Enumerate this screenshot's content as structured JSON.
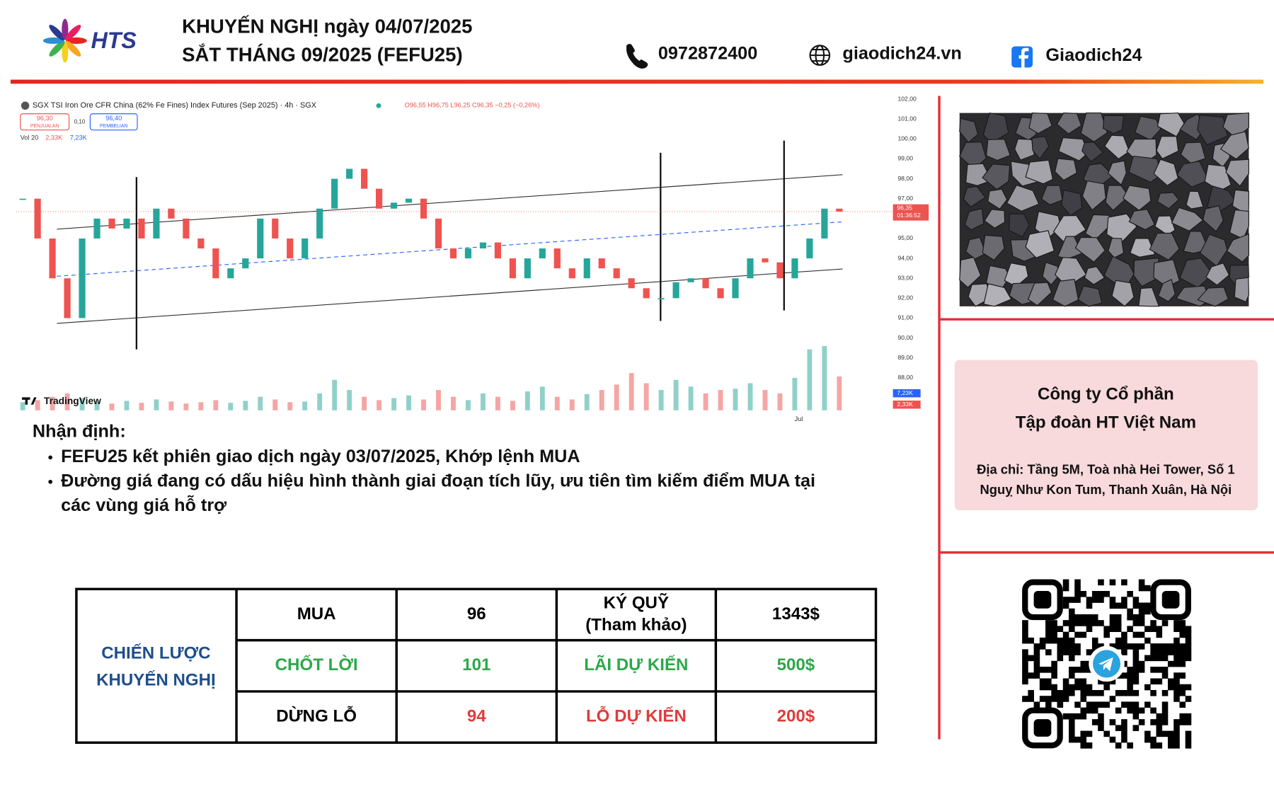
{
  "header": {
    "logo_text": "HTS",
    "title_line1": "KHUYẾN NGHỊ ngày 04/07/2025",
    "title_line2": "SẮT THÁNG 09/2025 (FEFU25)",
    "phone": "0972872400",
    "website": "giaodich24.vn",
    "facebook": "Giaodich24"
  },
  "chart_data": {
    "type": "candlestick",
    "title": "SGX TSI Iron Ore CFR China (62% Fe Fines) Index Futures (Sep 2025) · 4h · SGX",
    "ohlc_label": "O96,55 H96,75 L96,25 C96,35 −0,25 (−0,26%)",
    "sell_price": "96,30",
    "sell_label": "PENJUALAN",
    "spread": "0,10",
    "buy_price": "96,40",
    "buy_label": "PEMBELIAN",
    "volume_label": "Vol 20",
    "volume_value1": "2,33K",
    "volume_value2": "7,23K",
    "brand": "TradingView",
    "x_label": "Jul",
    "last_price": 96.35,
    "last_price_label": "96,35",
    "countdown": "01:36:52",
    "up_color": "#26a69a",
    "down_color": "#ef5350",
    "values": [
      97,
      95,
      93,
      91,
      95,
      96,
      95.5,
      96,
      95,
      96.5,
      96,
      95,
      94.5,
      93,
      93.5,
      94,
      96,
      95,
      94,
      95,
      96.5,
      98,
      98.5,
      97.5,
      96.5,
      96.8,
      97,
      96,
      94.5,
      94,
      94.5,
      94.8,
      94,
      93,
      94,
      94.5,
      93.5,
      93,
      94,
      93.5,
      93,
      92.5,
      92,
      92,
      92.8,
      93,
      92.5,
      92,
      93,
      94,
      93.8,
      93,
      94,
      95,
      96.5,
      96.35
    ],
    "volume": [
      1.2,
      1.5,
      2,
      2.5,
      1.8,
      1.2,
      1,
      1.4,
      1.1,
      1.6,
      1.3,
      1,
      1.2,
      1.5,
      1.1,
      1.4,
      2,
      1.6,
      1.2,
      1.3,
      2.5,
      4.5,
      3,
      2,
      1.5,
      1.8,
      2.2,
      1.6,
      3,
      2,
      1.5,
      2.5,
      2,
      1.4,
      2.8,
      3.5,
      2,
      1.6,
      2.4,
      3,
      3.8,
      5.5,
      4,
      3,
      4.5,
      3.5,
      2.5,
      3,
      3.2,
      4,
      3,
      2.5,
      4.8,
      9,
      9.5,
      5
    ],
    "vlim": [
      0,
      12
    ],
    "ylim": [
      88,
      102
    ],
    "yticks": [
      {
        "value": 88,
        "label": "88,00"
      },
      {
        "value": 89,
        "label": "89,00"
      },
      {
        "value": 90,
        "label": "90,00"
      },
      {
        "value": 91,
        "label": "91,00"
      },
      {
        "value": 92,
        "label": "92,00"
      },
      {
        "value": 93,
        "label": "93,00"
      },
      {
        "value": 94,
        "label": "94,00"
      },
      {
        "value": 95,
        "label": "95,00"
      },
      {
        "value": 96,
        "label": "96,00"
      },
      {
        "value": 97,
        "label": "97,00"
      },
      {
        "value": 98,
        "label": "98,00"
      },
      {
        "value": 99,
        "label": "99,00"
      },
      {
        "value": 100,
        "label": "100,00"
      },
      {
        "value": 101,
        "label": "101,00"
      },
      {
        "value": 102,
        "label": "102,00"
      }
    ]
  },
  "analysis": {
    "heading": "Nhận định:",
    "bullets": [
      [
        "FEFU25 kết phiên giao dịch ngày 03/07/2025, Khớp lệnh MUA"
      ],
      [
        "Đường giá đang có dấu hiệu hình thành giai đoạn tích lũy, ưu tiên tìm kiếm điểm MUA tại",
        "các vùng giá hỗ trợ"
      ]
    ]
  },
  "table": {
    "strategy_label": [
      "CHIẾN LƯỢC",
      "KHUYẾN NGHỊ"
    ],
    "strategy_color": "#1f4e8c",
    "rows": [
      [
        [
          "MUA"
        ],
        [
          "96"
        ],
        [
          "KÝ QUỸ",
          "(Tham khảo)"
        ],
        [
          "1343$"
        ]
      ],
      [
        [
          "CHỐT LỜI"
        ],
        [
          "101"
        ],
        [
          "LÃI DỰ KIẾN"
        ],
        [
          "500$"
        ]
      ],
      [
        [
          "DỪNG LỖ"
        ],
        [
          "94"
        ],
        [
          "LỖ DỰ KIẾN"
        ],
        [
          "200$"
        ]
      ]
    ],
    "cell_colors": [
      [
        "#000000",
        "#000000",
        "#000000",
        "#000000"
      ],
      [
        "#2ca84a",
        "#2ca84a",
        "#2ca84a",
        "#2ca84a"
      ],
      [
        "#000000",
        "#e23b3b",
        "#e23b3b",
        "#e23b3b"
      ]
    ]
  },
  "company": {
    "name": [
      "Công ty Cổ phần",
      "Tập đoàn HT Việt Nam"
    ],
    "address": [
      "Địa chỉ: Tầng 5M, Toà nhà Hei Tower, Số 1",
      "Nguỵ Như Kon Tum, Thanh Xuân, Hà Nội"
    ]
  }
}
